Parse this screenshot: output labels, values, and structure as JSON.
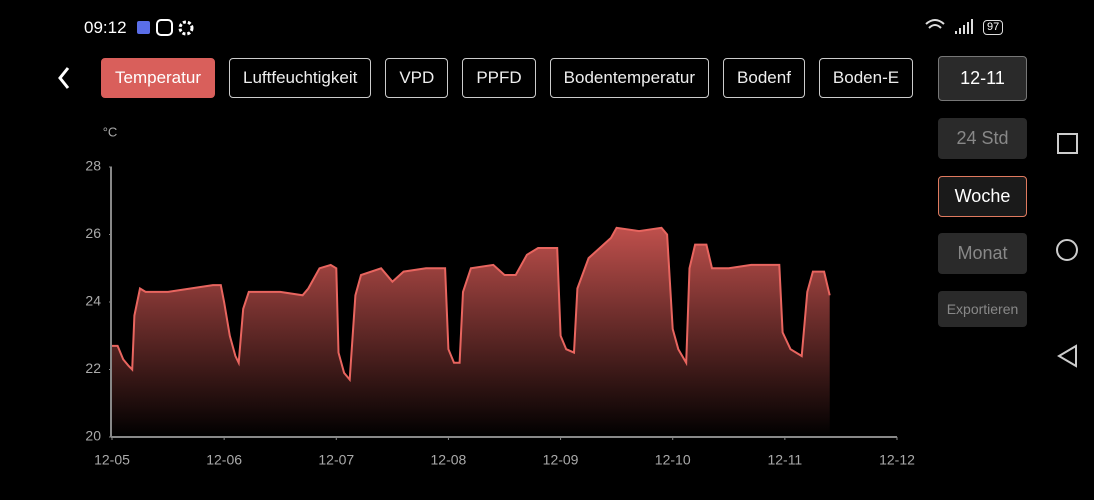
{
  "status_bar": {
    "time": "09:12",
    "battery": "97"
  },
  "tabs": [
    "Temperatur",
    "Luftfeuchtigkeit",
    "VPD",
    "PPFD",
    "Bodentemperatur",
    "Bodenf",
    "Boden-E"
  ],
  "date_button": "12-11",
  "ranges": [
    "24 Std",
    "Woche",
    "Monat"
  ],
  "export_button": "Exportieren",
  "chart_data": {
    "type": "area",
    "y_unit": "°C",
    "color": "#e8655f",
    "x": [
      0,
      0.05,
      0.1,
      0.15,
      0.18,
      0.2,
      0.25,
      0.3,
      0.5,
      0.7,
      0.9,
      0.97,
      1.0,
      1.05,
      1.1,
      1.13,
      1.17,
      1.22,
      1.5,
      1.7,
      1.75,
      1.85,
      1.95,
      2.0,
      2.02,
      2.07,
      2.12,
      2.17,
      2.22,
      2.4,
      2.5,
      2.6,
      2.8,
      2.97,
      3.0,
      3.05,
      3.1,
      3.13,
      3.2,
      3.4,
      3.5,
      3.6,
      3.7,
      3.8,
      3.97,
      4.0,
      4.05,
      4.12,
      4.15,
      4.25,
      4.35,
      4.45,
      4.5,
      4.7,
      4.9,
      4.95,
      5.0,
      5.05,
      5.12,
      5.15,
      5.2,
      5.3,
      5.35,
      5.5,
      5.7,
      5.95,
      5.98,
      6.05,
      6.15,
      6.2,
      6.25,
      6.35,
      6.4
    ],
    "values": [
      22.7,
      22.7,
      22.3,
      22.1,
      22.0,
      23.6,
      24.4,
      24.3,
      24.3,
      24.4,
      24.5,
      24.5,
      24.0,
      23.0,
      22.4,
      22.2,
      23.8,
      24.3,
      24.3,
      24.2,
      24.4,
      25.0,
      25.1,
      25.0,
      22.5,
      21.9,
      21.7,
      24.2,
      24.8,
      25.0,
      24.6,
      24.9,
      25.0,
      25.0,
      22.6,
      22.2,
      22.2,
      24.3,
      25.0,
      25.1,
      24.8,
      24.8,
      25.4,
      25.6,
      25.6,
      23.0,
      22.6,
      22.5,
      24.4,
      25.3,
      25.6,
      25.9,
      26.2,
      26.1,
      26.2,
      26.0,
      23.2,
      22.6,
      22.2,
      25.0,
      25.7,
      25.7,
      25.0,
      25.0,
      25.1,
      25.1,
      23.1,
      22.6,
      22.4,
      24.3,
      24.9,
      24.9,
      24.2
    ],
    "xlim": [
      0,
      7
    ],
    "xticks": [
      {
        "value": 0,
        "label": "12-05"
      },
      {
        "value": 1,
        "label": "12-06"
      },
      {
        "value": 2,
        "label": "12-07"
      },
      {
        "value": 3,
        "label": "12-08"
      },
      {
        "value": 4,
        "label": "12-09"
      },
      {
        "value": 5,
        "label": "12-10"
      },
      {
        "value": 6,
        "label": "12-11"
      },
      {
        "value": 7,
        "label": "12-12"
      }
    ],
    "ylim": [
      20,
      28
    ],
    "yticks": [
      20,
      22,
      24,
      26,
      28
    ]
  }
}
